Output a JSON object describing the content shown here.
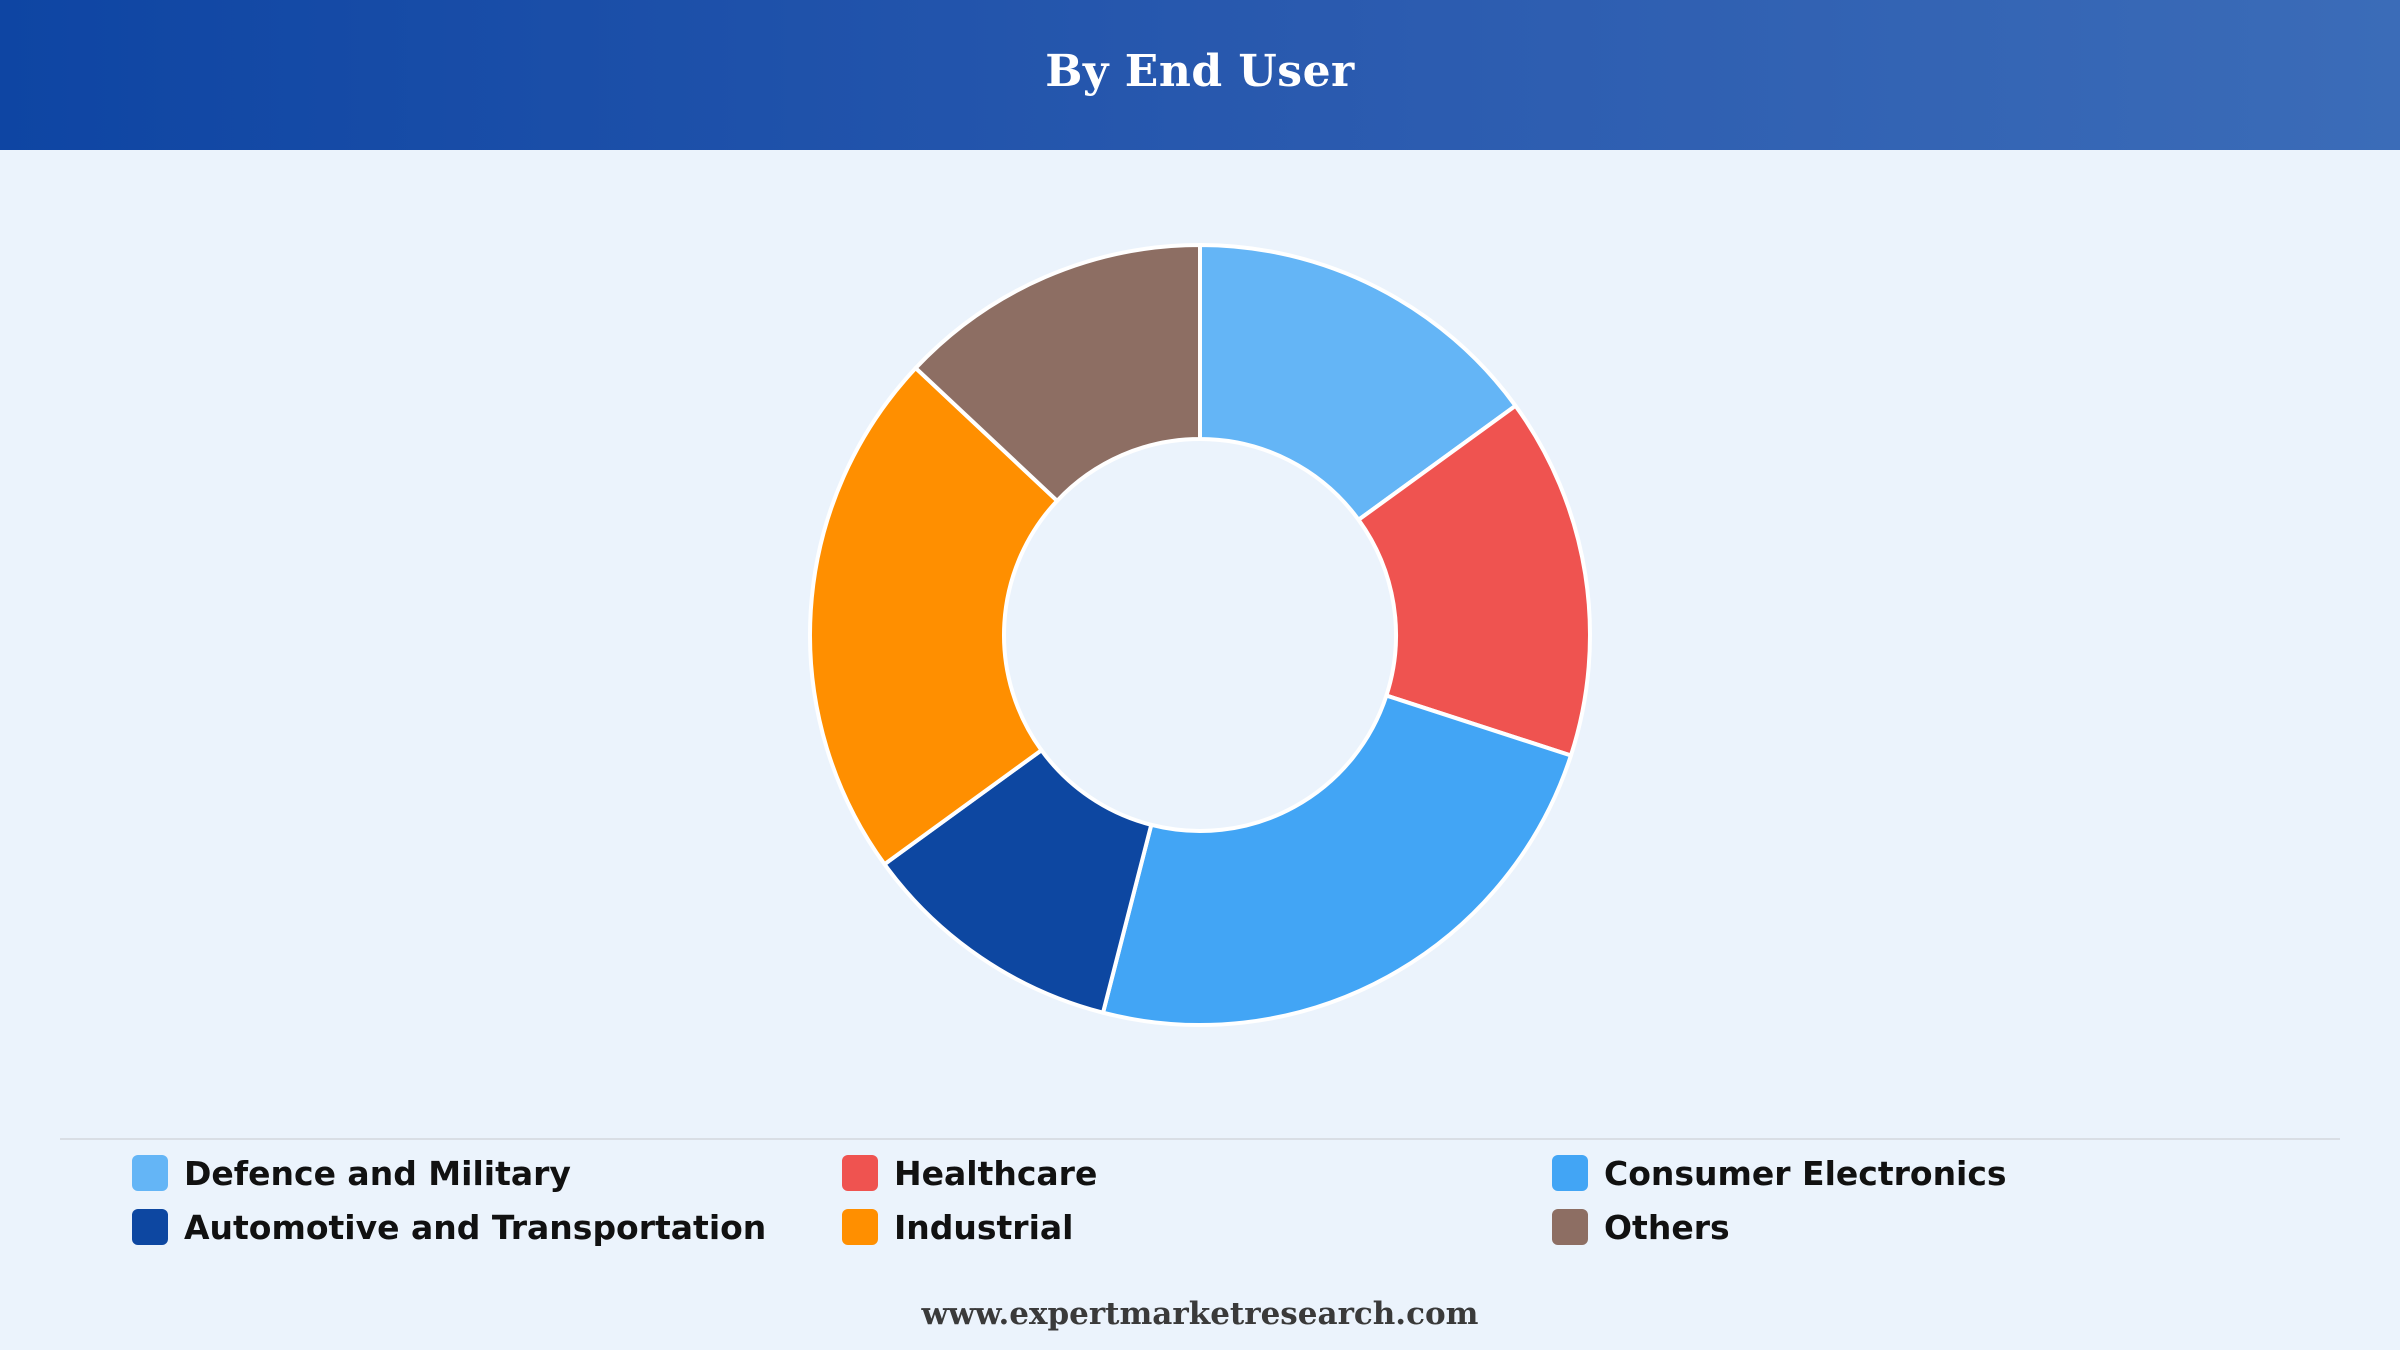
{
  "header": {
    "title": "By End User"
  },
  "chart_data": {
    "type": "pie",
    "donut": true,
    "legend_position": "bottom",
    "segments": [
      {
        "label": "Defence and Military",
        "value": 15,
        "color": "#64b5f6"
      },
      {
        "label": "Healthcare",
        "value": 15,
        "color": "#ef5350"
      },
      {
        "label": "Consumer Electronics",
        "value": 24,
        "color": "#42a5f5"
      },
      {
        "label": "Automotive and Transportation",
        "value": 11,
        "color": "#0d47a1"
      },
      {
        "label": "Industrial",
        "value": 22,
        "color": "#ff8f00"
      },
      {
        "label": "Others",
        "value": 13,
        "color": "#8d6e63"
      }
    ]
  },
  "legend": {
    "items": [
      {
        "label": "Defence and Military",
        "color": "#64b5f6"
      },
      {
        "label": "Healthcare",
        "color": "#ef5350"
      },
      {
        "label": "Consumer Electronics",
        "color": "#42a5f5"
      },
      {
        "label": "Automotive and Transportation",
        "color": "#0d47a1"
      },
      {
        "label": "Industrial",
        "color": "#ff8f00"
      },
      {
        "label": "Others",
        "color": "#8d6e63"
      }
    ]
  },
  "footer": {
    "source": "www.expertmarketresearch.com"
  }
}
